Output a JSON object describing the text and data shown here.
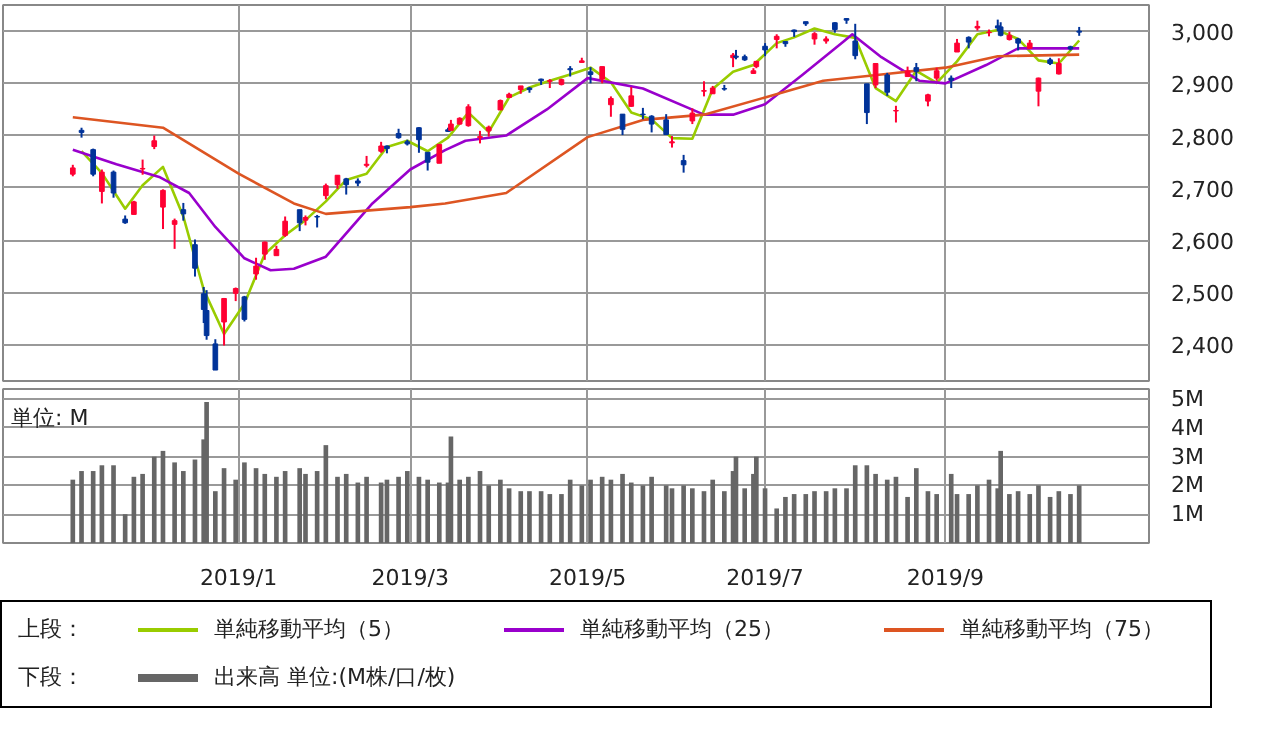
{
  "chart_data": [
    {
      "type": "candlestick",
      "x": [
        "2018-11-05",
        "2018-11-08",
        "2018-11-12",
        "2018-11-15",
        "2018-11-19",
        "2018-11-23",
        "2018-11-26",
        "2018-11-29",
        "2018-12-03",
        "2018-12-06",
        "2018-12-10",
        "2018-12-13",
        "2018-12-17",
        "2018-12-20",
        "2018-12-21",
        "2018-12-24",
        "2018-12-27",
        "2018-12-31",
        "2019-01-03",
        "2019-01-07",
        "2019-01-10",
        "2019-01-14",
        "2019-01-17",
        "2019-01-22",
        "2019-01-24",
        "2019-01-28",
        "2019-01-31",
        "2019-02-04",
        "2019-02-07",
        "2019-02-11",
        "2019-02-14",
        "2019-02-19",
        "2019-02-21",
        "2019-02-25",
        "2019-02-28",
        "2019-03-04",
        "2019-03-07",
        "2019-03-11",
        "2019-03-14",
        "2019-03-15",
        "2019-03-18",
        "2019-03-21",
        "2019-03-25",
        "2019-03-28",
        "2019-04-01",
        "2019-04-04",
        "2019-04-08",
        "2019-04-11",
        "2019-04-15",
        "2019-04-18",
        "2019-04-22",
        "2019-04-25",
        "2019-04-29",
        "2019-05-02",
        "2019-05-06",
        "2019-05-09",
        "2019-05-13",
        "2019-05-16",
        "2019-05-20",
        "2019-05-23",
        "2019-05-28",
        "2019-05-30",
        "2019-06-03",
        "2019-06-06",
        "2019-06-10",
        "2019-06-13",
        "2019-06-17",
        "2019-06-20",
        "2019-06-21",
        "2019-06-24",
        "2019-06-27",
        "2019-06-28",
        "2019-07-01",
        "2019-07-05",
        "2019-07-08",
        "2019-07-11",
        "2019-07-15",
        "2019-07-18",
        "2019-07-22",
        "2019-07-25",
        "2019-07-29",
        "2019-08-01",
        "2019-08-05",
        "2019-08-08",
        "2019-08-12",
        "2019-08-15",
        "2019-08-19",
        "2019-08-22",
        "2019-08-26",
        "2019-08-29",
        "2019-09-03",
        "2019-09-05",
        "2019-09-09",
        "2019-09-12",
        "2019-09-16",
        "2019-09-19",
        "2019-09-20",
        "2019-09-23",
        "2019-09-26",
        "2019-09-30",
        "2019-10-03",
        "2019-10-07",
        "2019-10-10",
        "2019-10-14",
        "2019-10-17"
      ],
      "ohlc": [
        [
          2726,
          2744,
          2722,
          2738
        ],
        [
          2810,
          2815,
          2796,
          2806
        ],
        [
          2773,
          2775,
          2722,
          2726
        ],
        [
          2693,
          2735,
          2670,
          2730
        ],
        [
          2730,
          2733,
          2681,
          2690
        ],
        [
          2640,
          2647,
          2631,
          2633
        ],
        [
          2649,
          2675,
          2649,
          2673
        ],
        [
          2736,
          2754,
          2725,
          2737
        ],
        [
          2779,
          2800,
          2774,
          2790
        ],
        [
          2663,
          2697,
          2621,
          2695
        ],
        [
          2630,
          2641,
          2583,
          2637
        ],
        [
          2658,
          2671,
          2637,
          2650
        ],
        [
          2591,
          2601,
          2530,
          2546
        ],
        [
          2497,
          2510,
          2441,
          2467
        ],
        [
          2465,
          2504,
          2409,
          2417
        ],
        [
          2401,
          2410,
          2351,
          2351
        ],
        [
          2443,
          2489,
          2398,
          2488
        ],
        [
          2498,
          2509,
          2483,
          2507
        ],
        [
          2491,
          2493,
          2444,
          2448
        ],
        [
          2535,
          2566,
          2524,
          2550
        ],
        [
          2573,
          2597,
          2562,
          2596
        ],
        [
          2570,
          2589,
          2570,
          2582
        ],
        [
          2609,
          2645,
          2606,
          2636
        ],
        [
          2658,
          2658,
          2617,
          2633
        ],
        [
          2638,
          2647,
          2628,
          2643
        ],
        [
          2645,
          2648,
          2624,
          2644
        ],
        [
          2685,
          2708,
          2678,
          2704
        ],
        [
          2706,
          2724,
          2698,
          2724
        ],
        [
          2717,
          2719,
          2687,
          2706
        ],
        [
          2713,
          2718,
          2703,
          2709
        ],
        [
          2743,
          2761,
          2739,
          2745
        ],
        [
          2770,
          2788,
          2767,
          2780
        ],
        [
          2780,
          2781,
          2766,
          2775
        ],
        [
          2804,
          2813,
          2794,
          2796
        ],
        [
          2788,
          2792,
          2781,
          2784
        ],
        [
          2815,
          2816,
          2767,
          2792
        ],
        [
          2768,
          2768,
          2733,
          2749
        ],
        [
          2747,
          2784,
          2747,
          2783
        ],
        [
          2811,
          2815,
          2807,
          2808
        ],
        [
          2810,
          2830,
          2810,
          2822
        ],
        [
          2822,
          2835,
          2821,
          2833
        ],
        [
          2819,
          2860,
          2817,
          2855
        ],
        [
          2796,
          2809,
          2785,
          2798
        ],
        [
          2809,
          2819,
          2798,
          2816
        ],
        [
          2849,
          2869,
          2849,
          2867
        ],
        [
          2873,
          2882,
          2873,
          2879
        ],
        [
          2888,
          2895,
          2880,
          2895
        ],
        [
          2891,
          2893,
          2882,
          2888
        ],
        [
          2908,
          2909,
          2897,
          2905
        ],
        [
          2904,
          2908,
          2891,
          2905
        ],
        [
          2898,
          2909,
          2896,
          2907
        ],
        [
          2928,
          2933,
          2913,
          2926
        ],
        [
          2940,
          2949,
          2939,
          2943
        ],
        [
          2922,
          2931,
          2900,
          2917
        ],
        [
          2908,
          2932,
          2900,
          2932
        ],
        [
          2859,
          2875,
          2836,
          2871
        ],
        [
          2841,
          2841,
          2801,
          2812
        ],
        [
          2856,
          2893,
          2855,
          2876
        ],
        [
          2841,
          2853,
          2831,
          2840
        ],
        [
          2837,
          2839,
          2806,
          2822
        ],
        [
          2830,
          2841,
          2801,
          2802
        ],
        [
          2786,
          2799,
          2777,
          2788
        ],
        [
          2752,
          2763,
          2729,
          2744
        ],
        [
          2828,
          2852,
          2822,
          2843
        ],
        [
          2885,
          2904,
          2875,
          2886
        ],
        [
          2880,
          2895,
          2880,
          2891
        ],
        [
          2890,
          2897,
          2886,
          2889
        ],
        [
          2949,
          2958,
          2931,
          2954
        ],
        [
          2952,
          2964,
          2946,
          2950
        ],
        [
          2951,
          2955,
          2943,
          2945
        ],
        [
          2919,
          2929,
          2918,
          2924
        ],
        [
          2932,
          2943,
          2929,
          2942
        ],
        [
          2971,
          2977,
          2952,
          2964
        ],
        [
          2984,
          2994,
          2967,
          2990
        ],
        [
          2980,
          2980,
          2970,
          2976
        ],
        [
          3002,
          3003,
          2989,
          2999
        ],
        [
          3018,
          3018,
          3010,
          3014
        ],
        [
          2985,
          2998,
          2974,
          2995
        ],
        [
          2981,
          2990,
          2976,
          2985
        ],
        [
          3016,
          3017,
          2997,
          3003
        ],
        [
          3024,
          3025,
          3014,
          3021
        ],
        [
          2981,
          3014,
          2946,
          2953
        ],
        [
          2899,
          2899,
          2822,
          2844
        ],
        [
          2897,
          2938,
          2891,
          2938
        ],
        [
          2916,
          2920,
          2876,
          2883
        ],
        [
          2847,
          2857,
          2825,
          2848
        ],
        [
          2913,
          2932,
          2913,
          2924
        ],
        [
          2930,
          2939,
          2904,
          2923
        ],
        [
          2866,
          2880,
          2856,
          2878
        ],
        [
          2910,
          2930,
          2905,
          2924
        ],
        [
          2910,
          2915,
          2891,
          2906
        ],
        [
          2960,
          2985,
          2960,
          2977
        ],
        [
          2988,
          2990,
          2967,
          2979
        ],
        [
          3006,
          3020,
          3001,
          3009
        ],
        [
          2997,
          3003,
          2990,
          2998
        ],
        [
          3010,
          3022,
          3000,
          3006
        ],
        [
          3008,
          3017,
          2990,
          2992
        ],
        [
          2984,
          2999,
          2982,
          2992
        ],
        [
          2985,
          2987,
          2963,
          2977
        ],
        [
          2967,
          2983,
          2967,
          2977
        ],
        [
          2885,
          2911,
          2856,
          2910
        ],
        [
          2945,
          2949,
          2935,
          2938
        ],
        [
          2918,
          2948,
          2917,
          2938
        ],
        [
          2970,
          2972,
          2963,
          2966
        ],
        [
          3000,
          3008,
          2991,
          2998
        ]
      ],
      "colors": [
        "#ff0033",
        "#003399",
        "#003399",
        "#ff0033",
        "#003399",
        "#003399",
        "#ff0033",
        "#ff0033",
        "#ff0033",
        "#ff0033",
        "#ff0033",
        "#003399",
        "#003399",
        "#003399",
        "#003399",
        "#003399",
        "#ff0033",
        "#ff0033",
        "#003399",
        "#ff0033",
        "#ff0033",
        "#ff0033",
        "#ff0033",
        "#003399",
        "#ff0033",
        "#003399",
        "#ff0033",
        "#ff0033",
        "#003399",
        "#003399",
        "#ff0033",
        "#ff0033",
        "#003399",
        "#003399",
        "#003399",
        "#003399",
        "#003399",
        "#ff0033",
        "#003399",
        "#ff0033",
        "#ff0033",
        "#ff0033",
        "#ff0033",
        "#ff0033",
        "#ff0033",
        "#ff0033",
        "#ff0033",
        "#003399",
        "#003399",
        "#ff0033",
        "#ff0033",
        "#003399",
        "#ff0033",
        "#003399",
        "#ff0033",
        "#ff0033",
        "#003399",
        "#ff0033",
        "#003399",
        "#003399",
        "#003399",
        "#ff0033",
        "#003399",
        "#ff0033",
        "#ff0033",
        "#ff0033",
        "#003399",
        "#ff0033",
        "#003399",
        "#003399",
        "#ff0033",
        "#ff0033",
        "#003399",
        "#ff0033",
        "#003399",
        "#003399",
        "#003399",
        "#ff0033",
        "#ff0033",
        "#003399",
        "#003399",
        "#003399",
        "#003399",
        "#ff0033",
        "#003399",
        "#ff0033",
        "#ff0033",
        "#003399",
        "#ff0033",
        "#ff0033",
        "#003399",
        "#ff0033",
        "#003399",
        "#ff0033",
        "#ff0033",
        "#003399",
        "#003399",
        "#ff0033",
        "#003399",
        "#ff0033",
        "#ff0033",
        "#003399",
        "#ff0033",
        "#003399",
        "#003399"
      ],
      "series": [
        {
          "name": "単純移動平均（5）",
          "type": "line",
          "color": "#99cc00",
          "x": [
            "2018-11-08",
            "2018-11-15",
            "2018-11-23",
            "2018-11-29",
            "2018-12-06",
            "2018-12-13",
            "2018-12-20",
            "2018-12-27",
            "2019-01-03",
            "2019-01-10",
            "2019-01-17",
            "2019-01-24",
            "2019-01-31",
            "2019-02-07",
            "2019-02-14",
            "2019-02-21",
            "2019-02-28",
            "2019-03-07",
            "2019-03-14",
            "2019-03-21",
            "2019-03-28",
            "2019-04-04",
            "2019-04-11",
            "2019-04-18",
            "2019-04-25",
            "2019-05-02",
            "2019-05-09",
            "2019-05-16",
            "2019-05-23",
            "2019-05-30",
            "2019-06-06",
            "2019-06-13",
            "2019-06-20",
            "2019-06-27",
            "2019-07-05",
            "2019-07-11",
            "2019-07-18",
            "2019-07-25",
            "2019-08-01",
            "2019-08-08",
            "2019-08-15",
            "2019-08-22",
            "2019-08-29",
            "2019-09-05",
            "2019-09-12",
            "2019-09-19",
            "2019-09-26",
            "2019-10-03",
            "2019-10-10",
            "2019-10-17"
          ],
          "values": [
            2770,
            2728,
            2660,
            2705,
            2740,
            2645,
            2505,
            2420,
            2478,
            2573,
            2609,
            2638,
            2674,
            2715,
            2727,
            2778,
            2790,
            2770,
            2796,
            2844,
            2807,
            2873,
            2892,
            2905,
            2917,
            2930,
            2902,
            2844,
            2831,
            2795,
            2794,
            2889,
            2922,
            2935,
            2977,
            2988,
            3005,
            2994,
            2987,
            2891,
            2866,
            2924,
            2901,
            2942,
            2994,
            3002,
            2985,
            2944,
            2938,
            2982
          ]
        },
        {
          "name": "単純移動平均（25）",
          "type": "line",
          "color": "#9900cc",
          "x": [
            "2018-11-05",
            "2018-11-20",
            "2018-12-05",
            "2018-12-15",
            "2018-12-24",
            "2019-01-03",
            "2019-01-12",
            "2019-01-20",
            "2019-01-31",
            "2019-02-16",
            "2019-03-01",
            "2019-03-13",
            "2019-03-20",
            "2019-04-03",
            "2019-04-17",
            "2019-05-01",
            "2019-05-20",
            "2019-06-10",
            "2019-06-20",
            "2019-07-01",
            "2019-07-14",
            "2019-07-28",
            "2019-07-31",
            "2019-08-10",
            "2019-08-23",
            "2019-09-01",
            "2019-09-15",
            "2019-09-26",
            "2019-10-17"
          ],
          "values": [
            2773,
            2745,
            2720,
            2690,
            2625,
            2565,
            2542,
            2545,
            2568,
            2670,
            2735,
            2772,
            2790,
            2800,
            2850,
            2910,
            2890,
            2840,
            2840,
            2860,
            2917,
            2980,
            2994,
            2950,
            2905,
            2900,
            2935,
            2967,
            2967
          ]
        },
        {
          "name": "単純移動平均（75）",
          "type": "line",
          "color": "#dd5522",
          "x": [
            "2018-11-05",
            "2018-12-06",
            "2019-01-01",
            "2019-01-20",
            "2019-01-31",
            "2019-03-01",
            "2019-03-13",
            "2019-04-03",
            "2019-05-01",
            "2019-05-20",
            "2019-06-10",
            "2019-07-01",
            "2019-07-21",
            "2019-08-10",
            "2019-09-01",
            "2019-09-19",
            "2019-10-17"
          ],
          "values": [
            2835,
            2815,
            2727,
            2670,
            2650,
            2663,
            2670,
            2690,
            2797,
            2830,
            2840,
            2873,
            2905,
            2917,
            2930,
            2952,
            2955
          ]
        }
      ],
      "xlim": [
        "2018-10-12",
        "2019-11-10"
      ],
      "xticks": [
        {
          "value": "2019-01-01",
          "label": null
        },
        {
          "value": "2019-03-01",
          "label": null
        },
        {
          "value": "2019-05-01",
          "label": null
        },
        {
          "value": "2019-07-01",
          "label": null
        },
        {
          "value": "2019-09-01",
          "label": null
        }
      ],
      "ylim": [
        2330,
        3050
      ],
      "yticks": [
        {
          "value": 2400,
          "label": "2,400"
        },
        {
          "value": 2500,
          "label": "2,500"
        },
        {
          "value": 2600,
          "label": "2,600"
        },
        {
          "value": 2700,
          "label": "2,700"
        },
        {
          "value": 2800,
          "label": "2,800"
        },
        {
          "value": 2900,
          "label": "2,900"
        },
        {
          "value": 3000,
          "label": "3,000"
        }
      ],
      "tick_labels": "y",
      "grid": true,
      "legend": "bottom",
      "legend_title": "上段："
    },
    {
      "type": "bar",
      "x": [
        "2018-11-05",
        "2018-11-08",
        "2018-11-12",
        "2018-11-15",
        "2018-11-19",
        "2018-11-23",
        "2018-11-26",
        "2018-11-29",
        "2018-12-03",
        "2018-12-06",
        "2018-12-10",
        "2018-12-13",
        "2018-12-17",
        "2018-12-20",
        "2018-12-21",
        "2018-12-24",
        "2018-12-27",
        "2018-12-31",
        "2019-01-03",
        "2019-01-07",
        "2019-01-10",
        "2019-01-14",
        "2019-01-17",
        "2019-01-22",
        "2019-01-24",
        "2019-01-28",
        "2019-01-31",
        "2019-02-04",
        "2019-02-07",
        "2019-02-11",
        "2019-02-14",
        "2019-02-19",
        "2019-02-21",
        "2019-02-25",
        "2019-02-28",
        "2019-03-04",
        "2019-03-07",
        "2019-03-11",
        "2019-03-14",
        "2019-03-15",
        "2019-03-18",
        "2019-03-21",
        "2019-03-25",
        "2019-03-28",
        "2019-04-01",
        "2019-04-04",
        "2019-04-08",
        "2019-04-11",
        "2019-04-15",
        "2019-04-18",
        "2019-04-22",
        "2019-04-25",
        "2019-04-29",
        "2019-05-02",
        "2019-05-06",
        "2019-05-09",
        "2019-05-13",
        "2019-05-16",
        "2019-05-20",
        "2019-05-23",
        "2019-05-28",
        "2019-05-30",
        "2019-06-03",
        "2019-06-06",
        "2019-06-10",
        "2019-06-13",
        "2019-06-17",
        "2019-06-20",
        "2019-06-21",
        "2019-06-24",
        "2019-06-27",
        "2019-06-28",
        "2019-07-01",
        "2019-07-05",
        "2019-07-08",
        "2019-07-11",
        "2019-07-15",
        "2019-07-18",
        "2019-07-22",
        "2019-07-25",
        "2019-07-29",
        "2019-08-01",
        "2019-08-05",
        "2019-08-08",
        "2019-08-12",
        "2019-08-15",
        "2019-08-19",
        "2019-08-22",
        "2019-08-26",
        "2019-08-29",
        "2019-09-03",
        "2019-09-05",
        "2019-09-09",
        "2019-09-12",
        "2019-09-16",
        "2019-09-19",
        "2019-09-20",
        "2019-09-23",
        "2019-09-26",
        "2019-09-30",
        "2019-10-03",
        "2019-10-07",
        "2019-10-10",
        "2019-10-14",
        "2019-10-17"
      ],
      "series": [
        {
          "name": "出来高 単位:(M株/口/枚)",
          "color": "#666666",
          "values": [
            2.2,
            2.5,
            2.5,
            2.7,
            2.7,
            1.0,
            2.3,
            2.4,
            3.0,
            3.2,
            2.8,
            2.5,
            2.9,
            3.6,
            4.9,
            1.8,
            2.6,
            2.2,
            2.8,
            2.6,
            2.4,
            2.3,
            2.5,
            2.6,
            2.4,
            2.5,
            3.4,
            2.3,
            2.4,
            2.1,
            2.3,
            2.1,
            2.2,
            2.3,
            2.5,
            2.3,
            2.2,
            2.1,
            2.1,
            3.7,
            2.2,
            2.3,
            2.5,
            2.0,
            2.2,
            1.9,
            1.8,
            1.8,
            1.8,
            1.7,
            1.7,
            2.2,
            2.0,
            2.2,
            2.3,
            2.2,
            2.4,
            2.1,
            2.0,
            2.3,
            2.0,
            1.9,
            2.0,
            1.9,
            1.8,
            2.2,
            1.8,
            2.5,
            3.0,
            1.9,
            2.4,
            3.0,
            1.9,
            1.2,
            1.6,
            1.7,
            1.7,
            1.8,
            1.8,
            1.9,
            1.9,
            2.7,
            2.7,
            2.4,
            2.2,
            2.3,
            1.6,
            2.6,
            1.8,
            1.7,
            2.4,
            1.7,
            1.7,
            2.0,
            2.2,
            1.9,
            3.2,
            1.7,
            1.8,
            1.7,
            2.0,
            1.6,
            1.8,
            1.7,
            2.0
          ]
        }
      ],
      "xlim": [
        "2018-10-12",
        "2019-11-10"
      ],
      "xticks": [
        {
          "value": "2019-01-01",
          "label": "2019/1"
        },
        {
          "value": "2019-03-01",
          "label": "2019/3"
        },
        {
          "value": "2019-05-01",
          "label": "2019/5"
        },
        {
          "value": "2019-07-01",
          "label": "2019/7"
        },
        {
          "value": "2019-09-01",
          "label": "2019/9"
        }
      ],
      "ylim": [
        0,
        5.35
      ],
      "yticks": [
        {
          "value": 1,
          "label": "1M"
        },
        {
          "value": 2,
          "label": "2M"
        },
        {
          "value": 3,
          "label": "3M"
        },
        {
          "value": 4,
          "label": "4M"
        },
        {
          "value": 5,
          "label": "5M"
        }
      ],
      "annotations": [
        "単位: M"
      ],
      "grid": true,
      "legend": "bottom",
      "legend_title": "下段："
    }
  ]
}
